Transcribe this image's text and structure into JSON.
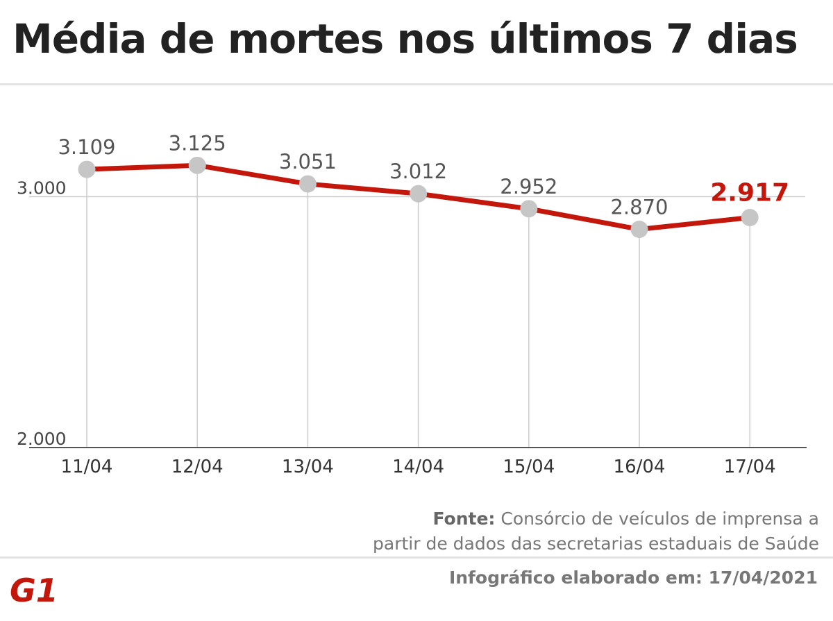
{
  "title": "Média de mortes nos últimos 7 dias",
  "source": {
    "label": "Fonte:",
    "line1": "Consórcio de veículos de imprensa a",
    "line2": "partir de dados das secretarias estaduais de Saúde"
  },
  "stamp": "Infográfico elaborado em: 17/04/2021",
  "logo": {
    "text": "G1",
    "color": "#c4170c"
  },
  "colors": {
    "line": "#c4170c",
    "marker": "#c6c6c6",
    "highlight": "#c4170c",
    "label": "#555555",
    "axis": "#555555",
    "grid": "#cccccc"
  },
  "chart_data": {
    "type": "line",
    "title": "Média de mortes nos últimos 7 dias",
    "xlabel": "",
    "ylabel": "",
    "categories": [
      "11/04",
      "12/04",
      "13/04",
      "14/04",
      "15/04",
      "16/04",
      "17/04"
    ],
    "series": [
      {
        "values": [
          3109,
          3125,
          3051,
          3012,
          2952,
          2870,
          2917
        ]
      }
    ],
    "value_labels": [
      "3.109",
      "3.125",
      "3.051",
      "3.012",
      "2.952",
      "2.870",
      "2.917"
    ],
    "highlight_index": 6,
    "ylim": [
      2000,
      3300
    ],
    "yticks": [
      2000,
      3000
    ],
    "ytick_labels": [
      "2.000",
      "3.000"
    ],
    "grid": "vertical lines at each point, horizontal line at 3.000"
  }
}
